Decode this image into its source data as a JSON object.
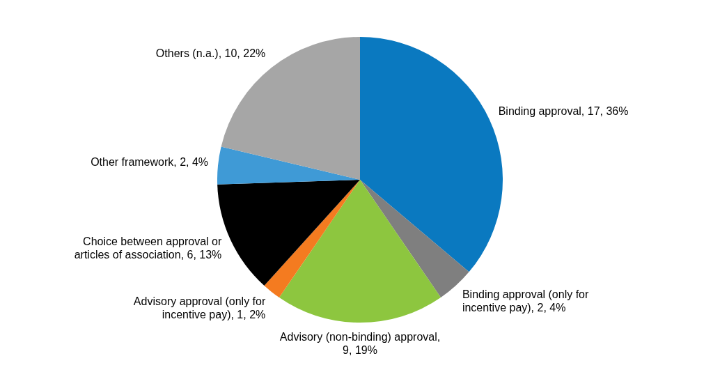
{
  "chart_data": {
    "type": "pie",
    "categories": [
      "Binding approval",
      "Binding approval (only for incentive pay)",
      "Advisory (non-binding) approval",
      "Advisory approval (only for incentive pay)",
      "Choice between approval or articles of association",
      "Other framework",
      "Others (n.a.)"
    ],
    "values": [
      17,
      2,
      9,
      1,
      6,
      2,
      10
    ],
    "value_labels": [
      ", 17, 36%",
      ", 2, 4%",
      ", 9, 19%",
      ", 1, 2%",
      ", 6, 13%",
      ", 2, 4%",
      ", 10, 22%"
    ],
    "colors": [
      "#0a79c0",
      "#7f7f7f",
      "#8dc63f",
      "#f47b20",
      "#000000",
      "#3f9ad6",
      "#a6a6a6"
    ],
    "legend": false
  }
}
